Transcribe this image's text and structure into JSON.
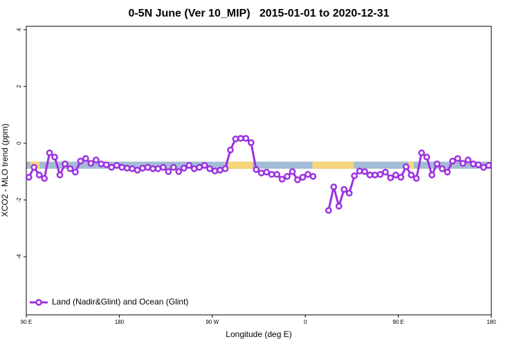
{
  "chart_data": {
    "type": "line",
    "title": "0-5N June (Ver 10_MIP)   2015-01-01 to 2020-12-31",
    "xlabel": "Longitude (deg E)",
    "ylabel": "XCO2 - MLO trend (ppm)",
    "xlim": [
      90,
      540
    ],
    "xticks": [
      {
        "value": 90,
        "label": "90 E"
      },
      180,
      {
        "value": 270,
        "label": "90 W"
      },
      {
        "value": 360,
        "label": "0"
      },
      {
        "value": 450,
        "label": "90 E"
      },
      {
        "value": 540,
        "label": "180"
      }
    ],
    "ylim": [
      -6.05,
      4.12
    ],
    "yticks": [
      4,
      2,
      0,
      -2,
      -4
    ],
    "legend": "bottom-left",
    "band_y": [
      -0.9,
      -0.65
    ],
    "bands": [
      {
        "x": [
          90,
          540
        ],
        "color": "#a3bcd6"
      },
      {
        "x": [
          94,
          103
        ],
        "color": "#f7d57a"
      },
      {
        "x": [
          285.5,
          309
        ],
        "color": "#f7d57a"
      },
      {
        "x": [
          367,
          407
        ],
        "color": "#f7d57a"
      },
      {
        "x": [
          459.6,
          465
        ],
        "color": "#f7d57a"
      }
    ],
    "x": [
      92.5,
      97.5,
      102.5,
      107.5,
      112.5,
      117.5,
      122.5,
      127.5,
      132.5,
      137.5,
      142.5,
      147.5,
      152.5,
      157.5,
      162.5,
      167.5,
      172.5,
      177.5,
      182.5,
      187.5,
      192.5,
      197.5,
      202.5,
      207.5,
      212.5,
      217.5,
      222.5,
      227.5,
      232.5,
      237.5,
      242.5,
      247.5,
      252.5,
      257.5,
      262.5,
      267.5,
      272.5,
      277.5,
      282.5,
      287.5,
      292.5,
      297.5,
      302.5,
      307.5,
      312.5,
      317.5,
      322.5,
      327.5,
      332.5,
      337.5,
      342.5,
      347.5,
      352.5,
      357.5,
      362.5,
      367.5,
      372.5,
      377.5,
      382.5,
      387.5,
      392.5,
      397.5,
      402.5,
      407.5,
      412.5,
      417.5,
      422.5,
      427.5,
      432.5,
      437.5,
      442.5,
      447.5,
      452.5,
      457.5,
      462.5,
      467.5,
      472.5,
      477.5,
      482.5,
      487.5,
      492.5,
      497.5,
      502.5,
      507.5,
      512.5,
      517.5,
      522.5,
      527.5,
      532.5,
      537.5
    ],
    "series": [
      {
        "name": "Land (Nadir&Glint) and Ocean (Glint)",
        "color": "#9b30e0",
        "values": [
          -1.2,
          -0.85,
          -1.12,
          -1.24,
          -0.34,
          -0.49,
          -1.12,
          -0.73,
          -0.9,
          -1.02,
          -0.63,
          -0.54,
          -0.71,
          -0.59,
          -0.73,
          -0.76,
          -0.85,
          -0.78,
          -0.85,
          -0.88,
          -0.9,
          -0.95,
          -0.88,
          -0.85,
          -0.9,
          -0.9,
          -0.85,
          -1.0,
          -0.85,
          -1.0,
          -0.88,
          -0.78,
          -0.9,
          -0.85,
          -0.78,
          -0.9,
          -0.98,
          -0.95,
          -0.9,
          -0.24,
          0.15,
          0.17,
          0.17,
          0.02,
          -0.93,
          -1.05,
          -1.02,
          -1.1,
          -1.1,
          -1.27,
          -1.17,
          -1.0,
          -1.29,
          -1.2,
          -1.1,
          -1.17,
          null,
          null,
          -2.37,
          -1.54,
          -2.22,
          -1.63,
          -1.76,
          -1.15,
          -0.98,
          -1.0,
          -1.12,
          -1.12,
          -1.1,
          -1.02,
          -1.22,
          -1.12,
          -1.2,
          -0.83,
          -1.12,
          -1.24,
          -0.34,
          -0.49,
          -1.12,
          -0.73,
          -0.9,
          -1.02,
          -0.63,
          -0.54,
          -0.71,
          -0.59,
          -0.73,
          -0.76,
          -0.85,
          -0.78
        ]
      }
    ]
  }
}
